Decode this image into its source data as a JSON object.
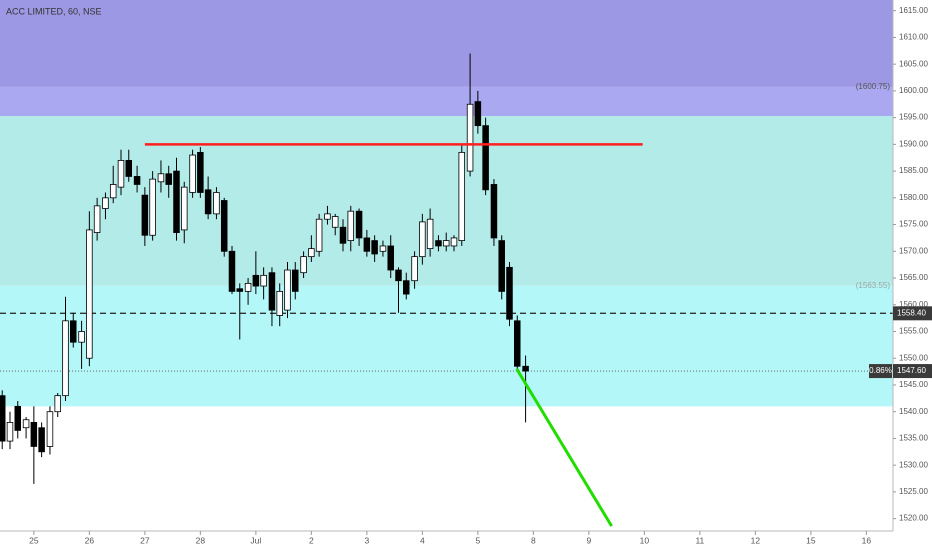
{
  "chart_data": {
    "type": "candlestick",
    "title": "ACC LIMITED, 60, NSE",
    "xlim": [
      -0.61,
      15.48
    ],
    "xticks": [
      {
        "value": 0,
        "label": "25"
      },
      {
        "value": 1,
        "label": "26"
      },
      {
        "value": 2,
        "label": "27"
      },
      {
        "value": 3,
        "label": "28"
      },
      {
        "value": 4,
        "label": "Jul"
      },
      {
        "value": 5,
        "label": "2"
      },
      {
        "value": 6,
        "label": "3"
      },
      {
        "value": 7,
        "label": "4"
      },
      {
        "value": 8,
        "label": "5"
      },
      {
        "value": 9,
        "label": "8"
      },
      {
        "value": 10,
        "label": "9"
      },
      {
        "value": 11,
        "label": "10"
      },
      {
        "value": 12,
        "label": "11"
      },
      {
        "value": 13,
        "label": "12"
      },
      {
        "value": 14,
        "label": "15"
      },
      {
        "value": 15,
        "label": "16"
      }
    ],
    "ylim": [
      1517.5,
      1617
    ],
    "yticks": [
      {
        "value": 1520,
        "label": "1520.00"
      },
      {
        "value": 1525,
        "label": "1525.00"
      },
      {
        "value": 1530,
        "label": "1530.00"
      },
      {
        "value": 1535,
        "label": "1535.00"
      },
      {
        "value": 1540,
        "label": "1540.00"
      },
      {
        "value": 1545,
        "label": "1545.00"
      },
      {
        "value": 1550,
        "label": "1550.00"
      },
      {
        "value": 1555,
        "label": "1555.00"
      },
      {
        "value": 1560,
        "label": "1560.00"
      },
      {
        "value": 1565,
        "label": "1565.00"
      },
      {
        "value": 1570,
        "label": "1570.00"
      },
      {
        "value": 1575,
        "label": "1575.00"
      },
      {
        "value": 1580,
        "label": "1580.00"
      },
      {
        "value": 1585,
        "label": "1585.00"
      },
      {
        "value": 1590,
        "label": "1590.00"
      },
      {
        "value": 1595,
        "label": "1595.00"
      },
      {
        "value": 1600,
        "label": "1600.00"
      },
      {
        "value": 1605,
        "label": "1605.00"
      },
      {
        "value": 1610,
        "label": "1610.00"
      },
      {
        "value": 1615,
        "label": "1615.00"
      }
    ],
    "grid": false,
    "up_color": "#ffffff",
    "down_color": "#000000",
    "x": [
      -0.57,
      -0.43,
      -0.29,
      -0.14,
      0,
      0.14,
      0.29,
      0.43,
      0.57,
      0.71,
      0.86,
      1,
      1.14,
      1.29,
      1.43,
      1.57,
      1.71,
      1.86,
      2,
      2.14,
      2.29,
      2.43,
      2.57,
      2.71,
      2.86,
      3,
      3.14,
      3.29,
      3.43,
      3.57,
      3.71,
      3.86,
      4,
      4.14,
      4.29,
      4.43,
      4.57,
      4.71,
      4.86,
      5,
      5.14,
      5.29,
      5.43,
      5.57,
      5.71,
      5.86,
      6,
      6.14,
      6.29,
      6.43,
      6.57,
      6.71,
      6.86,
      7,
      7.14,
      7.29,
      7.43,
      7.57,
      7.71,
      7.86,
      8,
      8.14,
      8.29,
      8.43,
      8.57,
      8.71,
      8.86
    ],
    "open": [
      1543,
      1534.5,
      1541,
      1537,
      1538,
      1537,
      1533.5,
      1540,
      1543,
      1557,
      1553,
      1550,
      1573.5,
      1578,
      1580,
      1582,
      1587,
      1584,
      1580.5,
      1573,
      1583,
      1584.5,
      1585,
      1574,
      1581,
      1588.5,
      1581.5,
      1577,
      1579.5,
      1570,
      1563,
      1562.5,
      1565.5,
      1563.5,
      1566,
      1558,
      1559,
      1566.5,
      1566,
      1569,
      1570,
      1576,
      1574.5,
      1574.5,
      1572,
      1577.5,
      1572.5,
      1572,
      1570,
      1571,
      1566.5,
      1564.5,
      1564.5,
      1569,
      1570.5,
      1572,
      1571,
      1571,
      1572,
      1585,
      1598,
      1593.5,
      1582.5,
      1572,
      1567,
      1557,
      1548.5
    ],
    "high": [
      1544,
      1540,
      1542,
      1539,
      1541,
      1538,
      1541,
      1543.5,
      1561.5,
      1558.5,
      1557,
      1577.5,
      1580,
      1581,
      1586,
      1589,
      1589,
      1586,
      1582,
      1585,
      1587,
      1586,
      1587.5,
      1583,
      1589,
      1589.5,
      1584,
      1582,
      1580,
      1571,
      1564,
      1565,
      1570,
      1567,
      1567,
      1564,
      1568,
      1568,
      1570,
      1573,
      1577,
      1578.5,
      1577,
      1576,
      1578.5,
      1578,
      1574,
      1573,
      1572,
      1573,
      1567,
      1566,
      1570,
      1577,
      1578,
      1573,
      1573.5,
      1573,
      1590,
      1607,
      1600,
      1595,
      1583.5,
      1573,
      1568,
      1558,
      1550.5
    ],
    "low": [
      1533,
      1533,
      1535,
      1535,
      1526.5,
      1531.5,
      1532,
      1539,
      1542,
      1552,
      1548,
      1548.5,
      1572,
      1576,
      1579,
      1580.5,
      1583,
      1581,
      1571,
      1572,
      1581,
      1580,
      1572,
      1571.5,
      1580,
      1580,
      1576,
      1576,
      1569,
      1562,
      1553.5,
      1560,
      1562,
      1561,
      1556,
      1556,
      1557.5,
      1561,
      1565,
      1568,
      1569,
      1575,
      1573,
      1570,
      1570,
      1571,
      1569,
      1568,
      1569,
      1565,
      1558.5,
      1561,
      1563,
      1567.5,
      1569,
      1570,
      1570,
      1570,
      1571,
      1584,
      1592,
      1580.5,
      1571,
      1561,
      1556,
      1548,
      1538
    ],
    "close": [
      1534.5,
      1538,
      1536.5,
      1538.5,
      1533.5,
      1532.5,
      1540,
      1543,
      1557,
      1553,
      1555,
      1574,
      1578.5,
      1580,
      1582.5,
      1587,
      1584,
      1582.5,
      1573,
      1583.5,
      1584.5,
      1582.5,
      1573.5,
      1582,
      1588,
      1581,
      1577,
      1581,
      1570,
      1562.5,
      1562.5,
      1564,
      1563.5,
      1565.5,
      1559,
      1562.5,
      1566.5,
      1562.5,
      1569,
      1570.5,
      1576,
      1577,
      1576.5,
      1571.5,
      1577.5,
      1572.5,
      1570,
      1569.5,
      1571,
      1566.5,
      1564.5,
      1562,
      1569,
      1575.5,
      1576,
      1571,
      1572,
      1572.5,
      1588.5,
      1597.5,
      1593.5,
      1581.5,
      1572.5,
      1562.5,
      1557.3,
      1548.5,
      1547.6
    ],
    "zones": [
      {
        "low": 1600.75,
        "color": "#9c98e3"
      },
      {
        "low": 1595.3,
        "high": 1600.75,
        "color": "#aba8f2"
      },
      {
        "low": 1563.55,
        "high": 1595.3,
        "color": "#b3ebe8"
      },
      {
        "low": 1541,
        "high": 1563.55,
        "color": "#b3f7f9"
      }
    ],
    "zone_labels": [
      {
        "value": 1600.75,
        "label": "(1600.75)",
        "color": "#555555"
      },
      {
        "value": 1563.55,
        "label": "(1563.55)",
        "color": "#9aa5a5"
      }
    ],
    "lines": [
      {
        "x": [
          2.0,
          10.97
        ],
        "y": [
          1590,
          1590
        ],
        "color": "#ff1f1f",
        "width": 2.5
      },
      {
        "x": [
          8.7,
          10.41
        ],
        "y": [
          1548,
          1518.6
        ],
        "color": "#22dd00",
        "width": 3
      }
    ],
    "levels": [
      {
        "value": 1558.4,
        "label": "1558.40",
        "style": "dashed"
      },
      {
        "value": 1547.6,
        "label": "1547.60",
        "style": "dotted",
        "change_label": "0.86%"
      }
    ]
  }
}
